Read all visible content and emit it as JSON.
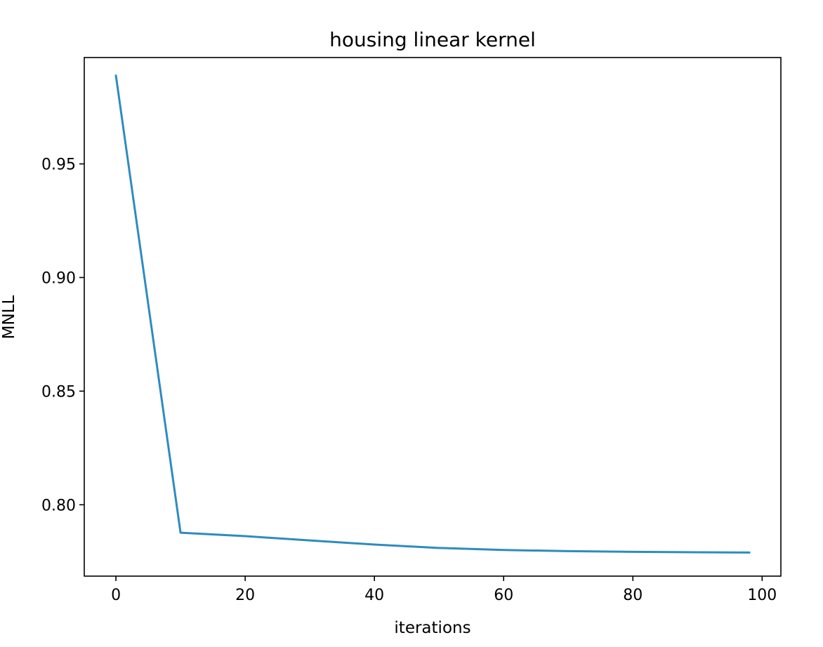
{
  "chart_data": {
    "type": "line",
    "title": "housing linear kernel",
    "xlabel": "iterations",
    "ylabel": "MNLL",
    "xlim": [
      -4.9,
      102.9
    ],
    "ylim": [
      0.7686,
      0.9968
    ],
    "x_ticks": [
      0,
      20,
      40,
      60,
      80,
      100
    ],
    "x_tick_labels": [
      "0",
      "20",
      "40",
      "60",
      "80",
      "100"
    ],
    "y_ticks": [
      0.8,
      0.85,
      0.9,
      0.95
    ],
    "y_tick_labels": [
      "0.80",
      "0.85",
      "0.90",
      "0.95"
    ],
    "grid": false,
    "legend": "none",
    "series": [
      {
        "color": "#2e8bc0",
        "x": [
          0,
          10,
          20,
          30,
          40,
          50,
          60,
          70,
          80,
          90,
          98
        ],
        "y": [
          0.9888,
          0.7877,
          0.7862,
          0.7843,
          0.7825,
          0.781,
          0.7801,
          0.7796,
          0.7793,
          0.7791,
          0.779
        ]
      }
    ]
  }
}
